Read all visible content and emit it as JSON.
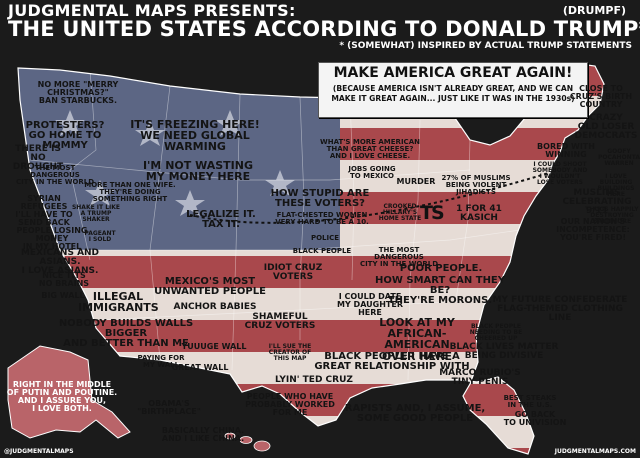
{
  "header": {
    "line1": "JUDGMENTAL MAPS PRESENTS:",
    "line2": "THE UNITED STATES ACCORDING TO DONALD TRUMP*",
    "drumpf": "(DRUMPF)",
    "subtitle": "* (SOMEWHAT) INSPIRED BY ACTUAL TRUMP STATEMENTS"
  },
  "callout": {
    "title": "MAKE AMERICA GREAT AGAIN!",
    "body": "(BECAUSE AMERICA ISN'T ALREADY GREAT, AND WE CAN MAKE IT GREAT AGAIN... JUST LIKE IT WAS IN THE 1930s)"
  },
  "logo_text": "TS",
  "labels": [
    {
      "id": "merry-christmas",
      "text": "NO MORE \"MERRY CHRISTMAS?\"\nBAN STARBUCKS."
    },
    {
      "id": "protesters",
      "text": "PROTESTERS?\nGO HOME TO MOMMY"
    },
    {
      "id": "freezing",
      "text": "IT'S FREEZING HERE!\nWE NEED GLOBAL WARMING"
    },
    {
      "id": "no-drought",
      "text": "THERE IS\nNO DROUGHT"
    },
    {
      "id": "dangerous-city-w",
      "text": "THE MOST DANGEROUS\nCITY IN THE WORLD"
    },
    {
      "id": "not-wasting",
      "text": "I'M NOT WASTING\nMY MONEY HERE"
    },
    {
      "id": "more-american",
      "text": "WHAT'S MORE AMERICAN\nTHAN GREAT CHEESE?\nAND I LOVE CHEESE."
    },
    {
      "id": "jobs-mexico",
      "text": "JOBS GOING\nTO MEXICO"
    },
    {
      "id": "murder",
      "text": "MURDER"
    },
    {
      "id": "muslims-jihadists",
      "text": "27% OF MUSLIMS\nBEING VIOLENT\nJIHADISTS"
    },
    {
      "id": "close-to-cruz",
      "text": "CLOSE TO\nCRUZ'S BIRTH\nCOUNTRY"
    },
    {
      "id": "crazy-old-loser",
      "text": "CRAZY\nOLD LOSER\nDEMOCRATS"
    },
    {
      "id": "bored-winning",
      "text": "BORED WITH\nWINNING"
    },
    {
      "id": "goofy",
      "text": "GOOFY\nPOCAHONTAS\nWARREN"
    },
    {
      "id": "shoot-somebody",
      "text": "I COULD SHOOT\nSOMEBODY AND\nI WOULDN'T\nLOSE VOTERS"
    },
    {
      "id": "love-buildings",
      "text": "I LOVE BUILDING\nBUILDINGS HERE"
    },
    {
      "id": "muslims-9-11",
      "text": "MUSLIMS\nCELEBRATING 9/11"
    },
    {
      "id": "thugs",
      "text": "THUGS HAPPILY\nDESTROYING\nBALTIMORE"
    },
    {
      "id": "one-wife",
      "text": "MORE THAN ONE WIFE.\nTHEY'RE DOING\nSOMETHING RIGHT"
    },
    {
      "id": "how-stupid",
      "text": "HOW STUPID ARE\nTHESE VOTERS?"
    },
    {
      "id": "flat-chested",
      "text": "FLAT-CHESTED WOMEN\nVERY HARD TO BE A 10."
    },
    {
      "id": "crooked-hillary",
      "text": "CROOKED\nHILLARY'S\nHOME STATE"
    },
    {
      "id": "one-for-41",
      "text": "1 FOR 41\nKASICH"
    },
    {
      "id": "nations-incompetence",
      "text": "OUR NATION'S\nINCOMPETENCE:\nYOU'RE FIRED!"
    },
    {
      "id": "syrian-refugees",
      "text": "SYRIAN REFUGEES\nI'LL HAVE TO\nSEND BACK"
    },
    {
      "id": "milkshake",
      "text": "SHAKE IT LIKE\nA TRUMP SHAKER"
    },
    {
      "id": "legalize",
      "text": "LEGALIZE IT.\nTAX IT."
    },
    {
      "id": "police",
      "text": "POLICE"
    },
    {
      "id": "black-people-n",
      "text": "BLACK PEOPLE"
    },
    {
      "id": "dangerous-city-c",
      "text": "THE MOST DANGEROUS\nCITY IN THE WORLD"
    },
    {
      "id": "losing-money",
      "text": "PEOPLE LOSING MONEY\nIN MY HOTEL"
    },
    {
      "id": "pageant",
      "text": "PAGEANT\nI SOLD"
    },
    {
      "id": "mexicans-asians",
      "text": "MEXICANS AND ASIANS.\nI LOVE ASIANS."
    },
    {
      "id": "idiot-cruz",
      "text": "IDIOT CRUZ\nVOTERS"
    },
    {
      "id": "poor-people",
      "text": "POOR PEOPLE."
    },
    {
      "id": "smart-they-be",
      "text": "HOW SMART CAN THEY BE?\nTHEY'RE MORONS."
    },
    {
      "id": "nice-tits",
      "text": "NICE TITS\nNO BRAINS"
    },
    {
      "id": "big-wall",
      "text": "BIG WALL"
    },
    {
      "id": "illegal-immigrants",
      "text": "ILLEGAL\nIMMIGRANTS"
    },
    {
      "id": "unwanted-people",
      "text": "MEXICO'S MOST\nUNWANTED PEOPLE"
    },
    {
      "id": "anchor-babies",
      "text": "ANCHOR BABIES"
    },
    {
      "id": "could-date",
      "text": "I COULD DATE\nMY DAUGHTER HERE"
    },
    {
      "id": "future-confederate",
      "text": "MY FUTURE CONFEDERATE\nFLAG-THEMED CLOTHING LINE"
    },
    {
      "id": "nobody-builds-walls",
      "text": "NOBODY BUILDS WALLS BIGGER\nAND BETTER THAN ME"
    },
    {
      "id": "shameful-cruz",
      "text": "SHAMEFUL\nCRUZ VOTERS"
    },
    {
      "id": "look-at-my",
      "text": "LOOK AT MY\nAFRICAN-AMERICAN\nOVER HERE"
    },
    {
      "id": "cheered-up",
      "text": "BLACK PEOPLE\nNEEDING TO BE\nCHEERED UP"
    },
    {
      "id": "yuuuge-wall",
      "text": "YUUUGE WALL"
    },
    {
      "id": "paying-wall",
      "text": "PAYING FOR\nMY WALL"
    },
    {
      "id": "great-wall",
      "text": "GREAT WALL"
    },
    {
      "id": "sue-creator",
      "text": "I'LL SUE THE\nCREATOR OF\nTHIS MAP"
    },
    {
      "id": "great-relationship",
      "text": "BLACK PEOPLE I HAVE A\nGREAT RELATIONSHIP WITH"
    },
    {
      "id": "lives-matter",
      "text": "BLACK LIVES MATTER\nBEING DIVISIVE"
    },
    {
      "id": "lyin-ted",
      "text": "LYIN' TED CRUZ"
    },
    {
      "id": "marco-rubio",
      "text": "MARCO RUBIO'S\nTINY PENIS"
    },
    {
      "id": "putin-poutine",
      "text": "RIGHT IN THE MIDDLE\nOF PUTIN AND POUTINE.\nAND I ASSURE YOU,\nI LOVE BOTH."
    },
    {
      "id": "obama-birthplace",
      "text": "OBAMA'S\n\"BIRTHPLACE\""
    },
    {
      "id": "probably-worked",
      "text": "PEOPLE WHO HAVE\nPROBABLY WORKED\nFOR ME"
    },
    {
      "id": "rapists",
      "text": "RAPISTS AND, I ASSUME,\nSOME GOOD PEOPLE"
    },
    {
      "id": "best-steaks",
      "text": "BEST STEAKS\nIN THE U.S."
    },
    {
      "id": "univision",
      "text": "GO BACK\nTO UNIVISION"
    },
    {
      "id": "china",
      "text": "BASICALLY CHINA.\nAND I LIKE CHINA."
    }
  ],
  "credits": {
    "left": "@JUDGMENTALMAPS",
    "right": "JUDGMENTALMAPS.COM"
  }
}
